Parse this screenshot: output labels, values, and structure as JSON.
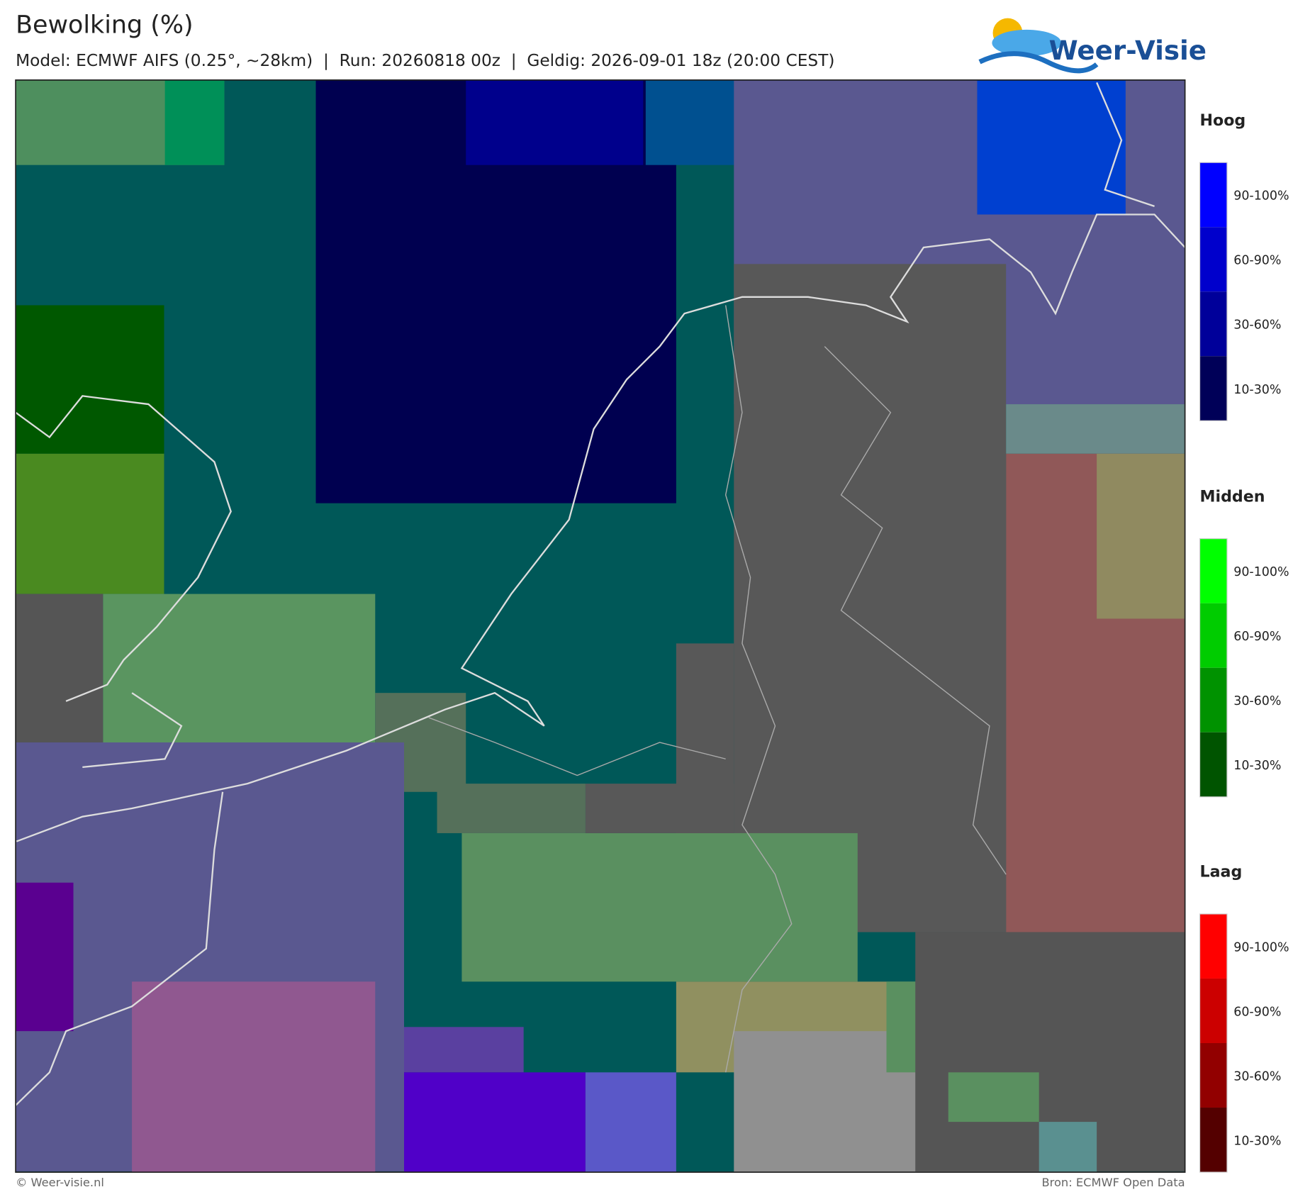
{
  "header": {
    "title": "Bewolking (%)",
    "subtitle": "Model: ECMWF AIFS (0.25°, ~28km)  |  Run: 20260818 00z  |  Geldig: 2026-09-01 18z (20:00 CEST)"
  },
  "logo": {
    "text": "Weer-Visie"
  },
  "legend": [
    {
      "title": "Hoog",
      "labels": [
        "90-100%",
        "60-90%",
        "30-60%",
        "10-30%"
      ]
    },
    {
      "title": "Midden",
      "labels": [
        "90-100%",
        "60-90%",
        "30-60%",
        "10-30%"
      ]
    },
    {
      "title": "Laag",
      "labels": [
        "90-100%",
        "60-90%",
        "30-60%",
        "10-30%"
      ]
    }
  ],
  "footer": {
    "left": "© Weer-visie.nl",
    "right": "Bron: ECMWF Open Data"
  }
}
